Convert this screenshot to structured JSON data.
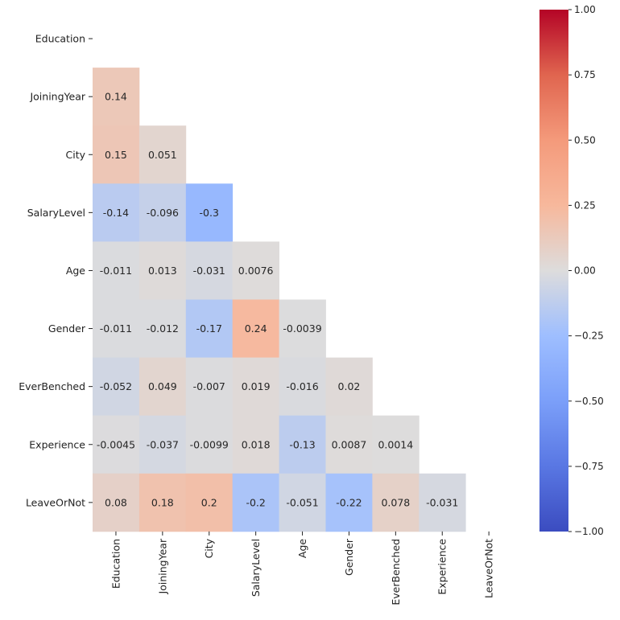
{
  "chart_data": {
    "type": "heatmap",
    "title": "",
    "variables": [
      "Education",
      "JoiningYear",
      "City",
      "SalaryLevel",
      "Age",
      "Gender",
      "EverBenched",
      "Experience",
      "LeaveOrNot"
    ],
    "mask": "upper-triangle-including-diagonal",
    "colormap": "coolwarm",
    "vmin": -1.0,
    "vmax": 1.0,
    "matrix": [
      [
        null,
        null,
        null,
        null,
        null,
        null,
        null,
        null,
        null
      ],
      [
        0.14,
        null,
        null,
        null,
        null,
        null,
        null,
        null,
        null
      ],
      [
        0.15,
        0.051,
        null,
        null,
        null,
        null,
        null,
        null,
        null
      ],
      [
        -0.14,
        -0.096,
        -0.3,
        null,
        null,
        null,
        null,
        null,
        null
      ],
      [
        -0.011,
        0.013,
        -0.031,
        0.0076,
        null,
        null,
        null,
        null,
        null
      ],
      [
        -0.011,
        -0.012,
        -0.17,
        0.24,
        -0.0039,
        null,
        null,
        null,
        null
      ],
      [
        -0.052,
        0.049,
        -0.007,
        0.019,
        -0.016,
        0.02,
        null,
        null,
        null
      ],
      [
        -0.0045,
        -0.037,
        -0.0099,
        0.018,
        -0.13,
        0.0087,
        0.0014,
        null,
        null
      ],
      [
        0.08,
        0.18,
        0.2,
        -0.2,
        -0.051,
        -0.22,
        0.078,
        -0.031,
        null
      ]
    ],
    "labels": [
      [
        null,
        null,
        null,
        null,
        null,
        null,
        null,
        null,
        null
      ],
      [
        "0.14",
        null,
        null,
        null,
        null,
        null,
        null,
        null,
        null
      ],
      [
        "0.15",
        "0.051",
        null,
        null,
        null,
        null,
        null,
        null,
        null
      ],
      [
        "-0.14",
        "-0.096",
        "-0.3",
        null,
        null,
        null,
        null,
        null,
        null
      ],
      [
        "-0.011",
        "0.013",
        "-0.031",
        "0.0076",
        null,
        null,
        null,
        null,
        null
      ],
      [
        "-0.011",
        "-0.012",
        "-0.17",
        "0.24",
        "-0.0039",
        null,
        null,
        null,
        null
      ],
      [
        "-0.052",
        "0.049",
        "-0.007",
        "0.019",
        "-0.016",
        "0.02",
        null,
        null,
        null
      ],
      [
        "-0.0045",
        "-0.037",
        "-0.0099",
        "0.018",
        "-0.13",
        "0.0087",
        "0.0014",
        null,
        null
      ],
      [
        "0.08",
        "0.18",
        "0.2",
        "-0.2",
        "-0.051",
        "-0.22",
        "0.078",
        "-0.031",
        null
      ]
    ],
    "colorbar": {
      "ticks": [
        1.0,
        0.75,
        0.5,
        0.25,
        0.0,
        -0.25,
        -0.5,
        -0.75,
        -1.0
      ],
      "tick_labels": [
        "1.00",
        "0.75",
        "0.50",
        "0.25",
        "0.00",
        "−0.25",
        "−0.50",
        "−0.75",
        "−1.00"
      ]
    }
  }
}
